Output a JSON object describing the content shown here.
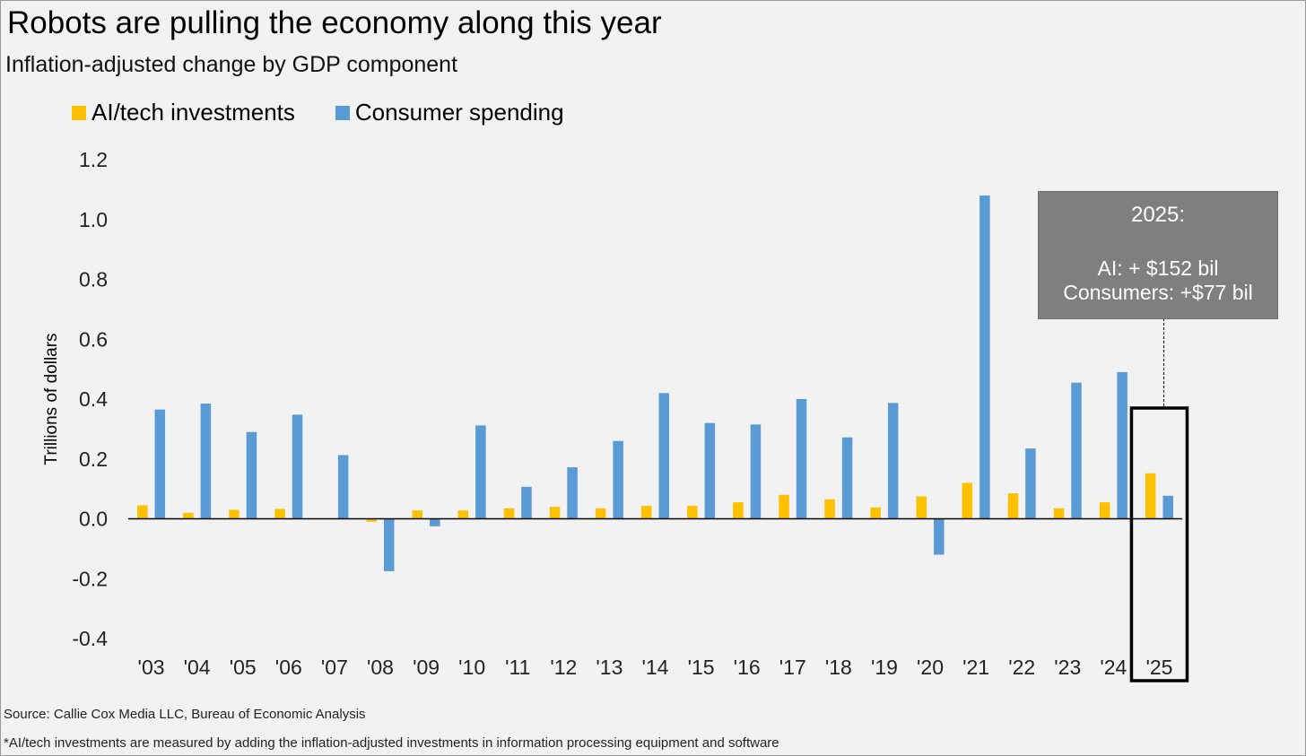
{
  "title": "Robots are pulling the economy along this year",
  "subtitle": "Inflation-adjusted change by GDP component",
  "source": "Source: Callie Cox Media LLC, Bureau of Economic Analysis",
  "footnote": "*AI/tech investments are measured by adding the inflation-adjusted investments in information processing equipment and software",
  "callout": {
    "title": "2025:",
    "line1": "AI: + $152 bil",
    "line2": "Consumers: +$77 bil"
  },
  "colors": {
    "ai": "#FFC000",
    "consumer": "#5B9BD5",
    "background": "#f2f2f2"
  },
  "chart_data": {
    "type": "bar",
    "ylabel": "Trillions of dollars",
    "ylim": [
      -0.4,
      1.2
    ],
    "yticks": [
      1.2,
      1.0,
      0.8,
      0.6,
      0.4,
      0.2,
      0.0,
      -0.2,
      -0.4
    ],
    "ytick_labels": [
      "1.2",
      "1.0",
      "0.8",
      "0.6",
      "0.4",
      "0.2",
      "0.0",
      "-0.2",
      "-0.4"
    ],
    "categories": [
      "'03",
      "'04",
      "'05",
      "'06",
      "'07",
      "'08",
      "'09",
      "'10",
      "'11",
      "'12",
      "'13",
      "'14",
      "'15",
      "'16",
      "'17",
      "'18",
      "'19",
      "'20",
      "'21",
      "'22",
      "'23",
      "'24",
      "'25"
    ],
    "series": [
      {
        "name": "AI/tech investments",
        "color": "#FFC000",
        "values": [
          0.045,
          0.02,
          0.03,
          0.033,
          0.0,
          -0.01,
          0.028,
          0.028,
          0.035,
          0.04,
          0.035,
          0.043,
          0.043,
          0.055,
          0.08,
          0.065,
          0.038,
          0.075,
          0.12,
          0.085,
          0.035,
          0.055,
          0.152
        ]
      },
      {
        "name": "Consumer spending",
        "color": "#5B9BD5",
        "values": [
          0.365,
          0.385,
          0.29,
          0.348,
          0.213,
          -0.175,
          -0.025,
          0.312,
          0.107,
          0.172,
          0.26,
          0.42,
          0.32,
          0.315,
          0.4,
          0.272,
          0.387,
          -0.12,
          1.08,
          0.235,
          0.455,
          0.49,
          0.077
        ]
      }
    ],
    "highlight_category": "'25",
    "legend_position": "top-left",
    "grid": false
  }
}
